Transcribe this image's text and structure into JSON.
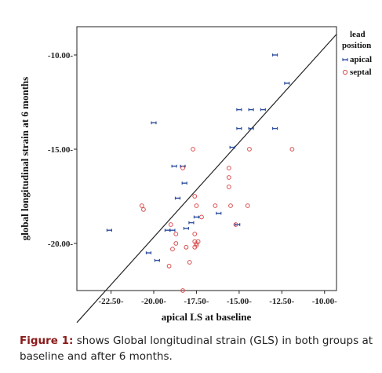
{
  "chart_data": {
    "type": "scatter",
    "xlabel": "apical LS at baseline",
    "ylabel": "global longitudinal strain at 6 months",
    "xlim": [
      -24.5,
      -9.3
    ],
    "ylim": [
      -22.5,
      -8.5
    ],
    "x_ticks": [
      -22.5,
      -20.0,
      -17.5,
      -15.0,
      -12.5,
      -10.0
    ],
    "x_tick_labels": [
      "-22.50-",
      "-20.00-",
      "-17.50-",
      "-15.00-",
      "-12.50-",
      "-10.00-"
    ],
    "y_ticks": [
      -10.0,
      -15.0,
      -20.0
    ],
    "y_tick_labels": [
      "-10.00-",
      "-15.00-",
      "-20.00-"
    ],
    "grid": false,
    "legend_position": "outside-right",
    "legend": {
      "title": "lead position",
      "entries": [
        "apical",
        "septal"
      ]
    },
    "series": [
      {
        "name": "apical",
        "color": "#2f4f9f",
        "marker": "bar",
        "x": [
          -12.9,
          -12.2,
          -15.0,
          -14.3,
          -13.6,
          -12.9,
          -15.0,
          -14.3,
          -20.0,
          -15.4,
          -18.8,
          -18.3,
          -18.2,
          -18.6,
          -16.2,
          -17.5,
          -17.8,
          -15.1,
          -18.1,
          -18.9,
          -19.2,
          -20.3,
          -19.8,
          -22.6
        ],
        "y": [
          -10.0,
          -11.5,
          -12.9,
          -12.9,
          -12.9,
          -13.9,
          -13.9,
          -13.9,
          -13.6,
          -14.9,
          -15.9,
          -15.9,
          -16.8,
          -17.6,
          -18.4,
          -18.6,
          -18.9,
          -19.0,
          -19.2,
          -19.3,
          -19.3,
          -20.5,
          -20.9,
          -19.3
        ]
      },
      {
        "name": "septal",
        "color": "#d94f4f",
        "marker": "circle",
        "x": [
          -11.9,
          -14.4,
          -17.7,
          -18.3,
          -15.6,
          -15.6,
          -15.6,
          -15.5,
          -14.5,
          -17.5,
          -17.6,
          -16.4,
          -17.2,
          -20.7,
          -19.0,
          -20.6,
          -17.6,
          -17.4,
          -18.7,
          -17.5,
          -17.6,
          -18.7,
          -18.9,
          -18.1,
          -17.9,
          -17.6,
          -17.5,
          -19.1,
          -18.3,
          -15.2
        ],
        "y": [
          -15.0,
          -15.0,
          -15.0,
          -16.0,
          -16.0,
          -16.5,
          -17.0,
          -18.0,
          -18.0,
          -18.0,
          -17.5,
          -18.0,
          -18.6,
          -18.0,
          -19.0,
          -18.2,
          -19.5,
          -19.9,
          -19.5,
          -20.1,
          -20.2,
          -20.0,
          -20.3,
          -20.2,
          -21.0,
          -19.9,
          -20.0,
          -21.2,
          -22.5,
          -19.0
        ]
      }
    ],
    "reference_line": {
      "x": [
        -24.5,
        -9.3
      ],
      "y": [
        -24.2,
        -8.9
      ]
    }
  },
  "caption": {
    "label": "Figure 1:",
    "text": " shows Global longitudinal strain (GLS) in both groups at baseline and after 6 months."
  }
}
